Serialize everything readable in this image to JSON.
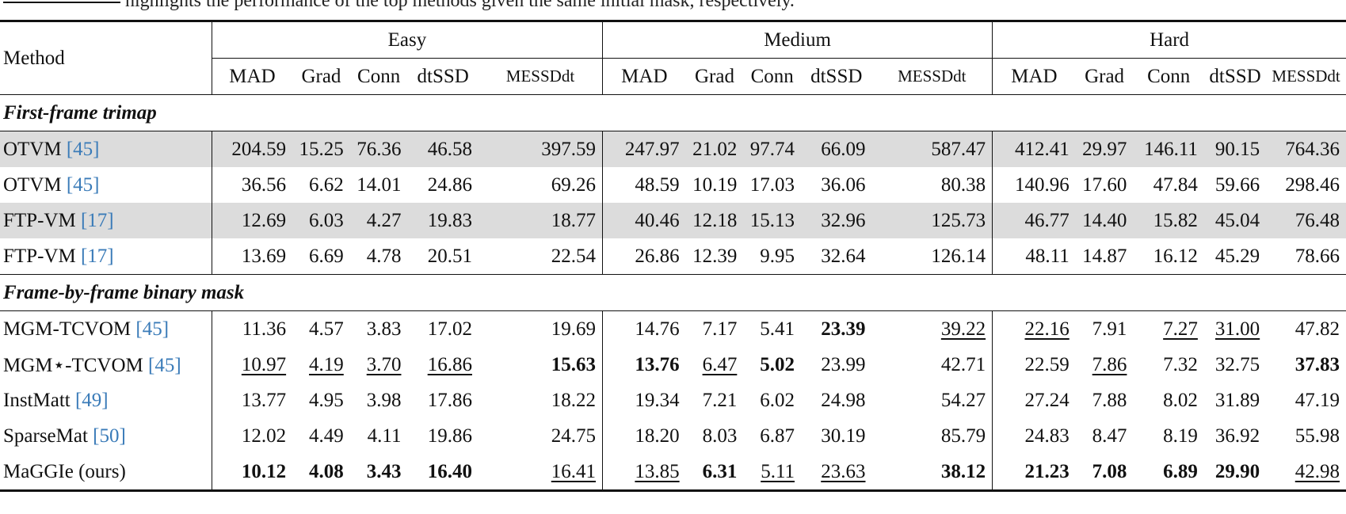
{
  "caption": "highlights the performance of the top methods given the same initial mask, respectively.",
  "header": {
    "method_label": "Method",
    "groups": [
      "Easy",
      "Medium",
      "Hard"
    ],
    "metrics": [
      "MAD",
      "Grad",
      "Conn",
      "dtSSD",
      "MESSDdt"
    ]
  },
  "sections": [
    {
      "title": "First-frame trimap",
      "rows": [
        {
          "method": "OTVM ",
          "cite": "[45]",
          "shaded": true,
          "values": [
            "204.59",
            "15.25",
            "76.36",
            "46.58",
            "397.59",
            "247.97",
            "21.02",
            "97.74",
            "66.09",
            "587.47",
            "412.41",
            "29.97",
            "146.11",
            "90.15",
            "764.36"
          ],
          "bold": [],
          "underline": []
        },
        {
          "method": "OTVM ",
          "cite": "[45]",
          "shaded": false,
          "values": [
            "36.56",
            "6.62",
            "14.01",
            "24.86",
            "69.26",
            "48.59",
            "10.19",
            "17.03",
            "36.06",
            "80.38",
            "140.96",
            "17.60",
            "47.84",
            "59.66",
            "298.46"
          ],
          "bold": [],
          "underline": []
        },
        {
          "method": "FTP-VM ",
          "cite": "[17]",
          "shaded": true,
          "values": [
            "12.69",
            "6.03",
            "4.27",
            "19.83",
            "18.77",
            "40.46",
            "12.18",
            "15.13",
            "32.96",
            "125.73",
            "46.77",
            "14.40",
            "15.82",
            "45.04",
            "76.48"
          ],
          "bold": [],
          "underline": []
        },
        {
          "method": "FTP-VM ",
          "cite": "[17]",
          "shaded": false,
          "values": [
            "13.69",
            "6.69",
            "4.78",
            "20.51",
            "22.54",
            "26.86",
            "12.39",
            "9.95",
            "32.64",
            "126.14",
            "48.11",
            "14.87",
            "16.12",
            "45.29",
            "78.66"
          ],
          "bold": [],
          "underline": []
        }
      ]
    },
    {
      "title": "Frame-by-frame binary mask",
      "rows": [
        {
          "method": "MGM-TCVOM ",
          "cite": "[45]",
          "shaded": false,
          "values": [
            "11.36",
            "4.57",
            "3.83",
            "17.02",
            "19.69",
            "14.76",
            "7.17",
            "5.41",
            "23.39",
            "39.22",
            "22.16",
            "7.91",
            "7.27",
            "31.00",
            "47.82"
          ],
          "bold": [
            8
          ],
          "underline": [
            9,
            10,
            12,
            13
          ]
        },
        {
          "method": "MGM⋆-TCVOM ",
          "cite": "[45]",
          "shaded": false,
          "values": [
            "10.97",
            "4.19",
            "3.70",
            "16.86",
            "15.63",
            "13.76",
            "6.47",
            "5.02",
            "23.99",
            "42.71",
            "22.59",
            "7.86",
            "7.32",
            "32.75",
            "37.83"
          ],
          "bold": [
            4,
            5,
            7,
            14
          ],
          "underline": [
            0,
            1,
            2,
            3,
            6,
            11
          ]
        },
        {
          "method": "InstMatt ",
          "cite": "[49]",
          "shaded": false,
          "values": [
            "13.77",
            "4.95",
            "3.98",
            "17.86",
            "18.22",
            "19.34",
            "7.21",
            "6.02",
            "24.98",
            "54.27",
            "27.24",
            "7.88",
            "8.02",
            "31.89",
            "47.19"
          ],
          "bold": [],
          "underline": []
        },
        {
          "method": "SparseMat ",
          "cite": "[50]",
          "shaded": false,
          "values": [
            "12.02",
            "4.49",
            "4.11",
            "19.86",
            "24.75",
            "18.20",
            "8.03",
            "6.87",
            "30.19",
            "85.79",
            "24.83",
            "8.47",
            "8.19",
            "36.92",
            "55.98"
          ],
          "bold": [],
          "underline": []
        },
        {
          "method": "MaGGIe (ours)",
          "cite": "",
          "shaded": false,
          "values": [
            "10.12",
            "4.08",
            "3.43",
            "16.40",
            "16.41",
            "13.85",
            "6.31",
            "5.11",
            "23.63",
            "38.12",
            "21.23",
            "7.08",
            "6.89",
            "29.90",
            "42.98"
          ],
          "bold": [
            0,
            1,
            2,
            3,
            6,
            9,
            10,
            11,
            12,
            13
          ],
          "underline": [
            4,
            5,
            7,
            8,
            14
          ]
        }
      ]
    }
  ]
}
